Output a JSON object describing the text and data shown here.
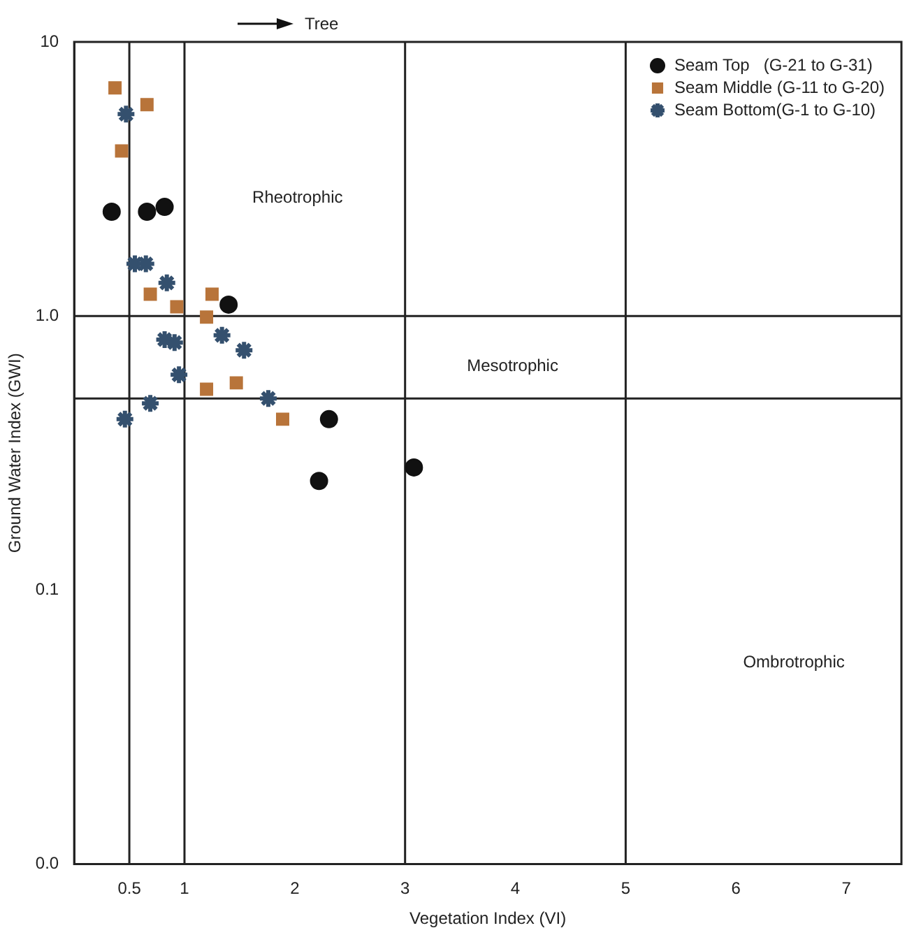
{
  "chart_data": {
    "type": "scatter",
    "xlabel": "Vegetation Index (VI)",
    "ylabel": "Ground Water Index (GWI)",
    "log": "y",
    "xlim": [
      0,
      7.5
    ],
    "ylim": [
      0.01,
      10
    ],
    "xticks": [
      0.5,
      1,
      2,
      3,
      4,
      5,
      6,
      7
    ],
    "yticks": [
      {
        "value": 0.01,
        "label": "0.0"
      },
      0.1,
      {
        "value": 1,
        "label": "1.0"
      },
      10
    ],
    "grid": false,
    "legend": "top right",
    "ref_lines": [
      {
        "axis": "x",
        "value": 0.5
      },
      {
        "axis": "x",
        "value": 1
      },
      {
        "axis": "x",
        "value": 3
      },
      {
        "axis": "x",
        "value": 5
      },
      {
        "axis": "y",
        "value": 1
      },
      {
        "axis": "y",
        "value": 0.5
      }
    ],
    "annotations": [
      "Tree",
      "Rheotrophic",
      "Mesotrophic",
      "Ombrotrophic"
    ],
    "series": [
      {
        "name": "Seam Top   (G-21 to G-31)",
        "color": "#111111",
        "marker": "circle",
        "x": [
          0.34,
          0.66,
          0.82,
          1.4,
          2.31,
          2.22,
          3.08
        ],
        "values": [
          2.4,
          2.4,
          2.5,
          1.1,
          0.42,
          0.25,
          0.28
        ]
      },
      {
        "name": "Seam Middle (G-11 to G-20)",
        "color": "#b8743a",
        "marker": "square",
        "x": [
          0.37,
          0.66,
          0.43,
          0.69,
          0.93,
          1.2,
          1.25,
          1.2,
          1.47,
          1.89
        ],
        "values": [
          6.8,
          5.9,
          4.0,
          1.2,
          1.08,
          0.99,
          1.2,
          0.54,
          0.57,
          0.42
        ]
      },
      {
        "name": "Seam Bottom(G-1 to G-10)",
        "color": "#34506e",
        "marker": "cross",
        "x": [
          0.47,
          0.55,
          0.65,
          0.84,
          0.82,
          0.91,
          0.95,
          1.34,
          1.54,
          1.76,
          0.69,
          0.46
        ],
        "values": [
          5.45,
          1.55,
          1.55,
          1.32,
          0.82,
          0.8,
          0.61,
          0.85,
          0.75,
          0.5,
          0.48,
          0.42
        ]
      }
    ]
  }
}
